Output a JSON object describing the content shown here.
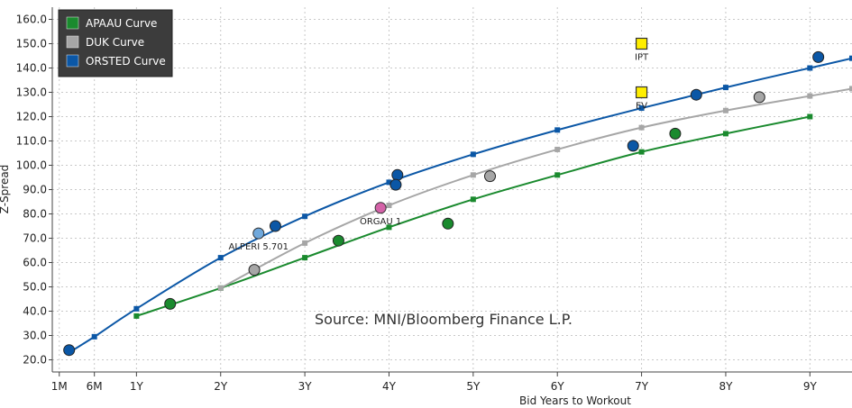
{
  "chart_data": {
    "type": "scatter",
    "xlabel": "Bid Years to Workout",
    "ylabel": "Z-Spread",
    "xlim": [
      0,
      9.5
    ],
    "ylim": [
      15,
      165
    ],
    "x_ticks": [
      {
        "value": 0.083,
        "label": "1M"
      },
      {
        "value": 0.5,
        "label": "6M"
      },
      {
        "value": 1,
        "label": "1Y"
      },
      {
        "value": 2,
        "label": "2Y"
      },
      {
        "value": 3,
        "label": "3Y"
      },
      {
        "value": 4,
        "label": "4Y"
      },
      {
        "value": 5,
        "label": "5Y"
      },
      {
        "value": 6,
        "label": "6Y"
      },
      {
        "value": 7,
        "label": "7Y"
      },
      {
        "value": 8,
        "label": "8Y"
      },
      {
        "value": 9,
        "label": "9Y"
      }
    ],
    "y_ticks": [
      {
        "value": 20,
        "label": "20.0"
      },
      {
        "value": 30,
        "label": "30.0"
      },
      {
        "value": 40,
        "label": "40.0"
      },
      {
        "value": 50,
        "label": "50.0"
      },
      {
        "value": 60,
        "label": "60.0"
      },
      {
        "value": 70,
        "label": "70.0"
      },
      {
        "value": 80,
        "label": "80.0"
      },
      {
        "value": 90,
        "label": "90.0"
      },
      {
        "value": 100,
        "label": "100.0"
      },
      {
        "value": 110,
        "label": "110.0"
      },
      {
        "value": 120,
        "label": "120.0"
      },
      {
        "value": 130,
        "label": "130.0"
      },
      {
        "value": 140,
        "label": "140.0"
      },
      {
        "value": 150,
        "label": "150.0"
      },
      {
        "value": 160,
        "label": "160.0"
      }
    ],
    "grid": true,
    "legend": {
      "position": "top-left",
      "background": "#3c3c3c"
    },
    "series": [
      {
        "name": "APAAU Curve",
        "color": "#1a8a2e",
        "curve": [
          [
            1,
            38
          ],
          [
            2,
            49.5
          ],
          [
            3,
            62
          ],
          [
            4,
            74.5
          ],
          [
            5,
            86
          ],
          [
            6,
            96
          ],
          [
            7,
            105.5
          ],
          [
            8,
            113
          ],
          [
            9,
            120
          ]
        ],
        "points": [
          [
            1.4,
            43
          ],
          [
            3.4,
            69
          ],
          [
            4.7,
            76
          ],
          [
            7.4,
            113
          ]
        ]
      },
      {
        "name": "DUK Curve",
        "color": "#a6a6a6",
        "curve": [
          [
            2,
            49.5
          ],
          [
            3,
            68
          ],
          [
            4,
            83.5
          ],
          [
            5,
            96
          ],
          [
            6,
            106.5
          ],
          [
            7,
            115.5
          ],
          [
            8,
            122.5
          ],
          [
            9,
            128.5
          ],
          [
            9.5,
            131.5
          ]
        ],
        "points": [
          [
            2.4,
            57
          ],
          [
            5.2,
            95.5
          ],
          [
            8.4,
            128
          ]
        ]
      },
      {
        "name": "ORSTED Curve",
        "color": "#0b57a6",
        "curve": [
          [
            0.2,
            23
          ],
          [
            0.5,
            29.5
          ],
          [
            1,
            41
          ],
          [
            2,
            62
          ],
          [
            3,
            79
          ],
          [
            4,
            93
          ],
          [
            5,
            104.5
          ],
          [
            6,
            114.5
          ],
          [
            7,
            123.5
          ],
          [
            8,
            132
          ],
          [
            9,
            140
          ],
          [
            9.5,
            144
          ]
        ],
        "points": [
          [
            0.2,
            24
          ],
          [
            2.65,
            75
          ],
          [
            4.1,
            96
          ],
          [
            4.08,
            92
          ],
          [
            6.9,
            108
          ],
          [
            7.65,
            129
          ],
          [
            9.1,
            144.5
          ]
        ]
      }
    ],
    "other_points": [
      {
        "label": "ALPERI 5.701",
        "x": 2.45,
        "y": 72,
        "color": "#6fa8dc",
        "shape": "circle"
      },
      {
        "label": "ORGAU 1",
        "x": 3.9,
        "y": 82.5,
        "color": "#d462a8",
        "shape": "circle"
      },
      {
        "label": "IPT",
        "x": 7,
        "y": 150,
        "color": "#ffee00",
        "shape": "square"
      },
      {
        "label": "EV",
        "x": 7,
        "y": 130,
        "color": "#ffee00",
        "shape": "square"
      }
    ],
    "annotations": [
      "Source: MNI/Bloomberg Finance L.P."
    ]
  }
}
